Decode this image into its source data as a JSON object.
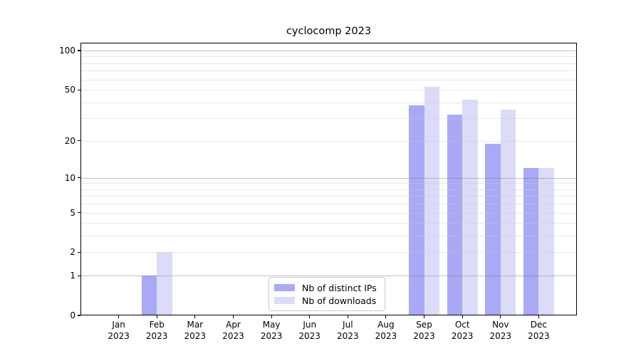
{
  "chart_data": {
    "type": "bar",
    "title": "cyclocomp 2023",
    "categories": [
      "Jan 2023",
      "Feb 2023",
      "Mar 2023",
      "Apr 2023",
      "May 2023",
      "Jun 2023",
      "Jul 2023",
      "Aug 2023",
      "Sep 2023",
      "Oct 2023",
      "Nov 2023",
      "Dec 2023"
    ],
    "series": [
      {
        "name": "Nb of distinct IPs",
        "color": "#a9a9f5",
        "values": [
          0,
          1,
          0,
          0,
          0,
          0,
          0,
          0,
          38,
          32,
          19,
          12
        ]
      },
      {
        "name": "Nb of downloads",
        "color": "#dcdcf8",
        "values": [
          0,
          2,
          0,
          0,
          0,
          0,
          0,
          0,
          53,
          42,
          35,
          12
        ]
      }
    ],
    "y_ticks": [
      0,
      1,
      2,
      5,
      10,
      20,
      50,
      100
    ],
    "y_scale": "log10(value+1)",
    "ylim": [
      0,
      115
    ],
    "xlabel": "",
    "ylabel": "",
    "grid": {
      "on": true,
      "minor_values": [
        2,
        3,
        4,
        5,
        6,
        7,
        8,
        9,
        20,
        30,
        40,
        50,
        60,
        70,
        80,
        90
      ],
      "major_values": [
        1,
        10,
        100
      ]
    },
    "legend": {
      "position": "lower center"
    },
    "colors": {
      "axis": "#000000",
      "background": "#ffffff",
      "grid_major": "rgba(110,110,110,0.40)",
      "grid_minor": "rgba(205,205,205,0.45)"
    }
  }
}
